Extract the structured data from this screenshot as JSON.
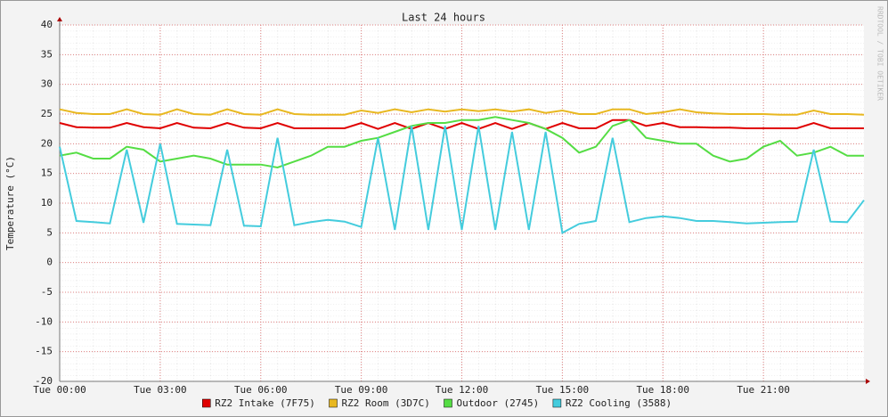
{
  "chart_data": {
    "type": "line",
    "title": "Last 24 hours",
    "y_label": "Temperature (°C)",
    "watermark": "RRDTOOL / TOBI OETIKER",
    "x": [
      0,
      0.5,
      1,
      1.5,
      2,
      2.5,
      3,
      3.5,
      4,
      4.5,
      5,
      5.5,
      6,
      6.5,
      7,
      7.5,
      8,
      8.5,
      9,
      9.5,
      10,
      10.5,
      11,
      11.5,
      12,
      12.5,
      13,
      13.5,
      14,
      14.5,
      15,
      15.5,
      16,
      16.5,
      17,
      17.5,
      18,
      18.5,
      19,
      19.5,
      20,
      20.5,
      21,
      21.5,
      22,
      22.5,
      23,
      23.5,
      24
    ],
    "xlim": [
      0,
      24
    ],
    "xticks": [
      {
        "value": 0,
        "label": "Tue 00:00"
      },
      {
        "value": 3,
        "label": "Tue 03:00"
      },
      {
        "value": 6,
        "label": "Tue 06:00"
      },
      {
        "value": 9,
        "label": "Tue 09:00"
      },
      {
        "value": 12,
        "label": "Tue 12:00"
      },
      {
        "value": 15,
        "label": "Tue 15:00"
      },
      {
        "value": 18,
        "label": "Tue 18:00"
      },
      {
        "value": 21,
        "label": "Tue 21:00"
      }
    ],
    "ylim": [
      -20,
      40
    ],
    "yticks": [
      -20,
      -15,
      -10,
      -5,
      0,
      5,
      10,
      15,
      20,
      25,
      30,
      35,
      40
    ],
    "grid": true,
    "legend": "bottom",
    "series": [
      {
        "name": "RZ2 Intake (7F75)",
        "color": "#e00000",
        "values": [
          23.5,
          22.8,
          22.7,
          22.7,
          23.5,
          22.8,
          22.6,
          23.5,
          22.7,
          22.6,
          23.5,
          22.7,
          22.6,
          23.5,
          22.6,
          22.6,
          22.6,
          22.6,
          23.5,
          22.5,
          23.5,
          22.5,
          23.5,
          22.5,
          23.5,
          22.5,
          23.5,
          22.5,
          23.5,
          22.5,
          23.5,
          22.6,
          22.6,
          24,
          24,
          23,
          23.5,
          22.8,
          22.8,
          22.7,
          22.7,
          22.6,
          22.6,
          22.6,
          22.6,
          23.5,
          22.6,
          22.6,
          22.6
        ]
      },
      {
        "name": "RZ2 Room (3D7C)",
        "color": "#e8b820",
        "values": [
          25.8,
          25.2,
          25,
          25,
          25.8,
          25,
          24.9,
          25.8,
          25,
          24.9,
          25.8,
          25,
          24.9,
          25.8,
          25,
          24.9,
          24.9,
          24.9,
          25.6,
          25.2,
          25.8,
          25.3,
          25.8,
          25.4,
          25.8,
          25.5,
          25.8,
          25.4,
          25.8,
          25.2,
          25.6,
          25,
          25,
          25.8,
          25.8,
          25,
          25.3,
          25.8,
          25.3,
          25.1,
          25,
          25,
          25,
          24.9,
          24.9,
          25.6,
          25,
          25,
          24.9
        ]
      },
      {
        "name": "Outdoor (2745)",
        "color": "#55dd44",
        "values": [
          18,
          18.5,
          17.5,
          17.5,
          19.5,
          19,
          17,
          17.5,
          18,
          17.5,
          16.5,
          16.5,
          16.5,
          16,
          17,
          18,
          19.5,
          19.5,
          20.5,
          21,
          22,
          23,
          23.5,
          23.5,
          24,
          24,
          24.5,
          24,
          23.5,
          22.5,
          21,
          18.5,
          19.5,
          23,
          24,
          21,
          20.5,
          20,
          20,
          18,
          17,
          17.5,
          19.5,
          20.5,
          18,
          18.5,
          19.5,
          18,
          18
        ]
      },
      {
        "name": "RZ2 Cooling (3588)",
        "color": "#44ccdd",
        "values": [
          19.5,
          7,
          6.8,
          6.6,
          19,
          6.7,
          20,
          6.5,
          6.4,
          6.3,
          19,
          6.2,
          6.1,
          21,
          6.3,
          6.8,
          7.2,
          6.9,
          6,
          21,
          5.5,
          23,
          5.5,
          23,
          5.5,
          23,
          5.5,
          22,
          5.5,
          22,
          5,
          6.5,
          7,
          21,
          6.8,
          7.5,
          7.8,
          7.5,
          7,
          7,
          6.8,
          6.6,
          6.7,
          6.8,
          6.9,
          19,
          6.9,
          6.8,
          10.5
        ]
      }
    ]
  }
}
